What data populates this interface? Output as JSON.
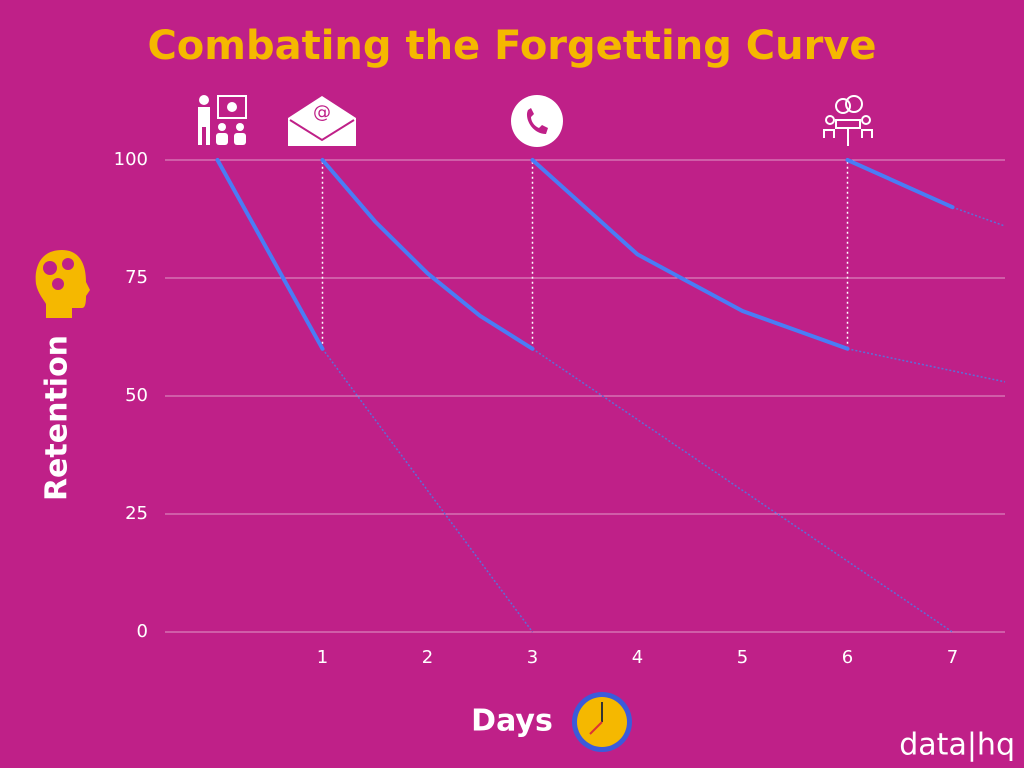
{
  "chart_data": {
    "type": "line",
    "title": "Combating the Forgetting Curve",
    "x_label": "Days",
    "y_label": "Retention",
    "brand": "data|hq",
    "xlim": [
      -0.5,
      7.5
    ],
    "xticks": [
      1,
      2,
      3,
      4,
      5,
      6,
      7
    ],
    "ylim": [
      0,
      100
    ],
    "yticks": [
      0,
      25,
      50,
      75,
      100
    ],
    "grid": true,
    "series": [
      {
        "color": "#4a7cf5",
        "x": [
          0,
          1
        ],
        "values": [
          100,
          60
        ]
      },
      {
        "color": "#4a7cf5",
        "x": [
          1,
          1.5,
          2,
          2.5,
          3
        ],
        "values": [
          100,
          87,
          76,
          67,
          60
        ]
      },
      {
        "color": "#4a7cf5",
        "x": [
          3,
          3.5,
          4,
          4.5,
          5,
          5.5,
          6
        ],
        "values": [
          100,
          90,
          80,
          74,
          68,
          64,
          60
        ]
      },
      {
        "color": "#4a7cf5",
        "x": [
          6,
          7
        ],
        "values": [
          100,
          90
        ]
      }
    ],
    "projections": [
      {
        "color": "#5b6fd8",
        "x": [
          1,
          3
        ],
        "values": [
          60,
          0
        ]
      },
      {
        "color": "#5b6fd8",
        "x": [
          3,
          7
        ],
        "values": [
          60,
          0
        ]
      },
      {
        "color": "#5b6fd8",
        "x": [
          6,
          7.5
        ],
        "values": [
          60,
          53
        ]
      },
      {
        "color": "#5b6fd8",
        "x": [
          7,
          7.5
        ],
        "values": [
          90,
          86
        ]
      }
    ]
  }
}
